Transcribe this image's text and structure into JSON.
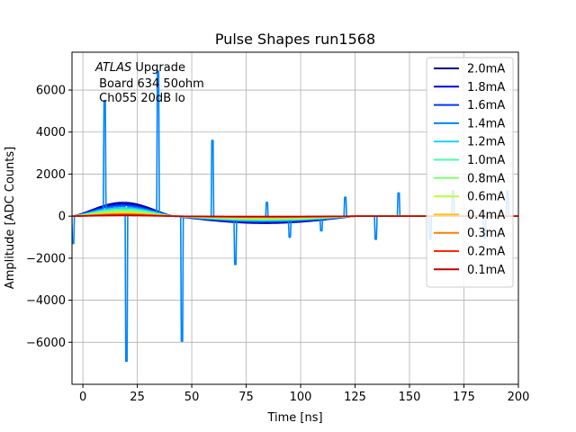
{
  "chart_data": {
    "type": "line",
    "title": "Pulse Shapes run1568",
    "xlabel": "Time [ns]",
    "ylabel": "Amplitude [ADC Counts]",
    "xlim": [
      -5,
      200
    ],
    "ylim": [
      -8000,
      7800
    ],
    "xticks": [
      0,
      25,
      50,
      75,
      100,
      125,
      150,
      175,
      200
    ],
    "yticks": [
      -6000,
      -4000,
      -2000,
      0,
      2000,
      4000,
      6000
    ],
    "xtick_labels": [
      "0",
      "25",
      "50",
      "75",
      "100",
      "125",
      "150",
      "175",
      "200"
    ],
    "ytick_labels": [
      "−6000",
      "−4000",
      "−2000",
      "0",
      "2000",
      "4000",
      "6000"
    ],
    "grid": true,
    "legend_position": "top-right",
    "annotation": {
      "line1_italic": "ATLAS",
      "line1_rest": " Upgrade",
      "line2": " Board 634 50ohm",
      "line3": " Ch055 20dB lo"
    },
    "series": [
      {
        "name": "2.0mA",
        "color": "#00007f",
        "peak": 650
      },
      {
        "name": "1.8mA",
        "color": "#0000e8",
        "peak": 580
      },
      {
        "name": "1.6mA",
        "color": "#0038ff",
        "peak": 520
      },
      {
        "name": "1.4mA",
        "color": "#0084ff",
        "peak": 460,
        "noisy": true
      },
      {
        "name": "1.2mA",
        "color": "#14d4ff",
        "peak": 390
      },
      {
        "name": "1.0mA",
        "color": "#4cffaa",
        "peak": 320
      },
      {
        "name": "0.8mA",
        "color": "#83ff73",
        "peak": 260
      },
      {
        "name": "0.6mA",
        "color": "#bdff39",
        "peak": 200
      },
      {
        "name": "0.4mA",
        "color": "#ffc400",
        "peak": 140
      },
      {
        "name": "0.3mA",
        "color": "#ff8000",
        "peak": 100
      },
      {
        "name": "0.2mA",
        "color": "#ff2a00",
        "peak": 70
      },
      {
        "name": "0.1mA",
        "color": "#c00000",
        "peak": 35
      }
    ],
    "spikes_1_4mA": [
      {
        "x": -4.5,
        "y": -1300
      },
      {
        "x": 10,
        "y": 5500
      },
      {
        "x": 20,
        "y": -6900
      },
      {
        "x": 34.5,
        "y": 6900
      },
      {
        "x": 45.5,
        "y": -5950
      },
      {
        "x": 59.5,
        "y": 3600
      },
      {
        "x": 70,
        "y": -2300
      },
      {
        "x": 84.5,
        "y": 650
      },
      {
        "x": 95,
        "y": -1000
      },
      {
        "x": 109.5,
        "y": -700
      },
      {
        "x": 120.5,
        "y": 900
      },
      {
        "x": 134.5,
        "y": -1100
      },
      {
        "x": 145,
        "y": 1100
      },
      {
        "x": 159.5,
        "y": -1100
      },
      {
        "x": 170,
        "y": 1200
      },
      {
        "x": 184.5,
        "y": -1050
      },
      {
        "x": 195,
        "y": 1200
      }
    ]
  }
}
